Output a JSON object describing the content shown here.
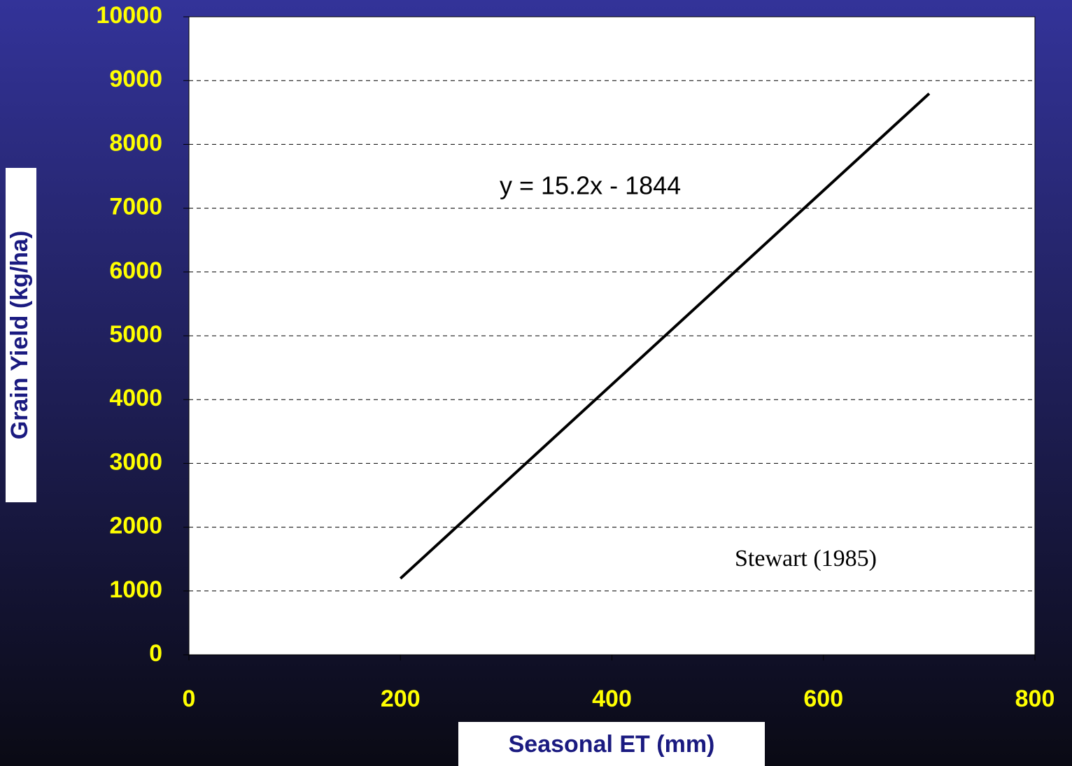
{
  "chart_data": {
    "type": "line",
    "x_label": "Seasonal ET (mm)",
    "y_label": "Grain Yield (kg/ha)",
    "annotations": [
      "y = 15.2x - 1844",
      "Stewart (1985)"
    ],
    "x": [
      200,
      700
    ],
    "series": [
      {
        "color": "#000000",
        "values": [
          1196,
          8796
        ]
      }
    ],
    "xlim": [
      0,
      800
    ],
    "xticks": [
      0,
      200,
      400,
      600,
      800
    ],
    "ylim": [
      0,
      10000
    ],
    "yticks": [
      0,
      1000,
      2000,
      3000,
      4000,
      5000,
      6000,
      7000,
      8000,
      9000,
      10000
    ],
    "grid": true
  }
}
